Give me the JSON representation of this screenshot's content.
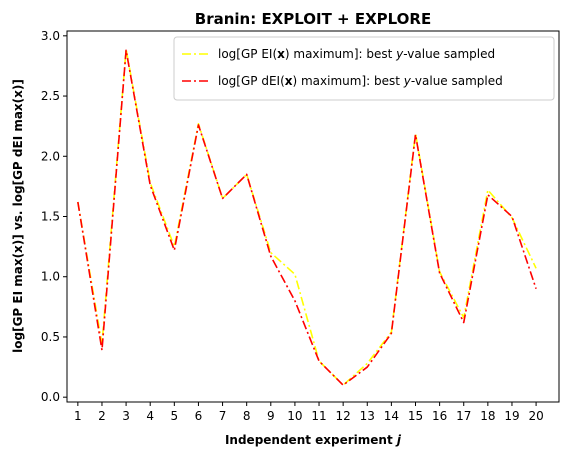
{
  "chart_data": {
    "type": "line",
    "title": "Branin: EXPLOIT + EXPLORE",
    "xlabel": "Independent experiment",
    "xlabel_var": "j",
    "ylabel": "log[GP EI max(x)] vs. log[GP dEI max(x)]",
    "x": [
      1,
      2,
      3,
      4,
      5,
      6,
      7,
      8,
      9,
      10,
      11,
      12,
      13,
      14,
      15,
      16,
      17,
      18,
      19,
      20
    ],
    "xlim": [
      0.55,
      20.95
    ],
    "ylim": [
      -0.04,
      3.04
    ],
    "yticks": [
      0.0,
      0.5,
      1.0,
      1.5,
      2.0,
      2.5,
      3.0
    ],
    "ytick_labels": [
      "0.0",
      "0.5",
      "1.0",
      "1.5",
      "2.0",
      "2.5",
      "3.0"
    ],
    "grid": false,
    "legend_position": "top-right",
    "series": [
      {
        "name_parts": [
          "log[GP EI(",
          "x",
          ") maximum]: best ",
          "y",
          "-value sampled"
        ],
        "color": "#ffff00",
        "linestyle": "dash-dot",
        "values": [
          1.62,
          0.44,
          2.89,
          1.78,
          1.25,
          2.27,
          1.65,
          1.85,
          1.2,
          1.02,
          0.3,
          0.1,
          0.28,
          0.54,
          2.19,
          1.04,
          0.66,
          1.72,
          1.49,
          1.07
        ]
      },
      {
        "name_parts": [
          "log[GP dEI(",
          "x",
          ") maximum]: best ",
          "y",
          "-value sampled"
        ],
        "color": "#ff0000",
        "linestyle": "dash-dot",
        "values": [
          1.62,
          0.39,
          2.88,
          1.76,
          1.22,
          2.26,
          1.65,
          1.85,
          1.17,
          0.8,
          0.3,
          0.1,
          0.25,
          0.53,
          2.18,
          1.03,
          0.62,
          1.68,
          1.5,
          0.9
        ]
      }
    ]
  }
}
